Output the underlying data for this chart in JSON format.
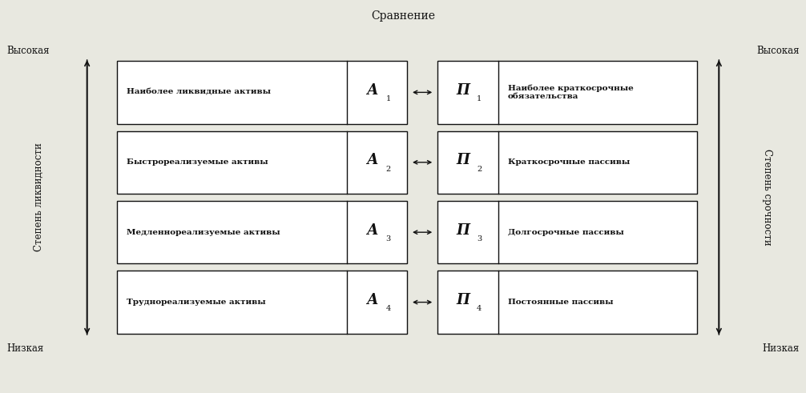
{
  "title": "Сравнение",
  "left_axis_label": "Степень ликвидности",
  "right_axis_label": "Степень срочности",
  "top_left": "Высокая",
  "top_right": "Высокая",
  "bottom_left": "Низкая",
  "bottom_right": "Низкая",
  "rows": [
    {
      "asset_text": "Наиболее ликвидные активы",
      "asset_symbol": "А",
      "asset_index": "1",
      "passive_symbol": "П",
      "passive_index": "1",
      "passive_text": "Наиболее краткосрочные\nобязательства"
    },
    {
      "asset_text": "Быстрореализуемые активы",
      "asset_symbol": "А",
      "asset_index": "2",
      "passive_symbol": "П",
      "passive_index": "2",
      "passive_text": "Краткосрочные пассивы"
    },
    {
      "asset_text": "Медленнореализуемые активы",
      "asset_symbol": "А",
      "asset_index": "3",
      "passive_symbol": "П",
      "passive_index": "3",
      "passive_text": "Долгосрочные пассивы"
    },
    {
      "asset_text": "Труднореализуемые активы",
      "asset_symbol": "А",
      "asset_index": "4",
      "passive_symbol": "П",
      "passive_index": "4",
      "passive_text": "Постоянные пассивы"
    }
  ],
  "bg_color": "#e8e8e0",
  "box_color": "#ffffff",
  "box_edge_color": "#111111",
  "text_color": "#111111",
  "axis_color": "#111111"
}
